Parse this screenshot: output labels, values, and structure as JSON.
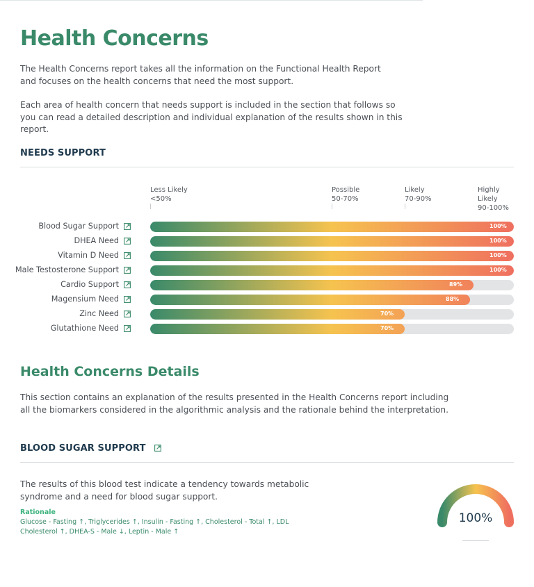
{
  "header": {
    "title": "Health Concerns",
    "intro_1": "The Health Concerns report takes all the information on the Functional Health Report and focuses on the health concerns that need the most support.",
    "intro_2": "Each area of health concern that needs support is included in the section that follows so you can read a detailed description and individual explanation of the results shown in this report."
  },
  "needs_support": {
    "heading": "NEEDS SUPPORT",
    "scale": [
      {
        "l1": "Less Likely",
        "l2": "<50%",
        "l3": ""
      },
      {
        "l1": "Possible",
        "l2": "50-70%",
        "l3": ""
      },
      {
        "l1": "Likely",
        "l2": "70-90%",
        "l3": ""
      },
      {
        "l1": "Highly",
        "l2": "Likely",
        "l3": "90-100%"
      }
    ],
    "rows": [
      {
        "label": "Blood Sugar Support",
        "percent": 100,
        "value_label": "100%"
      },
      {
        "label": "DHEA Need",
        "percent": 100,
        "value_label": "100%"
      },
      {
        "label": "Vitamin D Need",
        "percent": 100,
        "value_label": "100%"
      },
      {
        "label": "Male Testosterone Support",
        "percent": 100,
        "value_label": "100%"
      },
      {
        "label": "Cardio Support",
        "percent": 89,
        "value_label": "89%"
      },
      {
        "label": "Magensium Need",
        "percent": 88,
        "value_label": "88%"
      },
      {
        "label": "Zinc Need",
        "percent": 70,
        "value_label": "70%"
      },
      {
        "label": "Glutathione Need",
        "percent": 70,
        "value_label": "70%"
      }
    ],
    "icon": "external-link-icon"
  },
  "details": {
    "heading": "Health Concerns Details",
    "text": "This section contains an explanation of the results presented in the Health Concerns report including all the biomarkers considered in the algorithmic analysis and the rationale behind the interpretation."
  },
  "blood_sugar": {
    "heading": "BLOOD SUGAR SUPPORT",
    "text": "The results of this blood test indicate a tendency towards metabolic syndrome and a need for blood sugar support.",
    "rationale_heading": "Rationale",
    "rationale": "Glucose - Fasting ↑, Triglycerides ↑, Insulin - Fasting ↑, Cholesterol - Total ↑, LDL Cholesterol ↑, DHEA-S - Male ↓, Leptin - Male ↑",
    "gauge_percent": 100,
    "gauge_label": "100%"
  },
  "colors": {
    "title_green": "#3a8a6a",
    "navy": "#1f3a4d",
    "grad_green": "#3a8a6a",
    "grad_yellow": "#f6c34f",
    "grad_red": "#ef6f5f",
    "track": "#e2e4e6"
  }
}
